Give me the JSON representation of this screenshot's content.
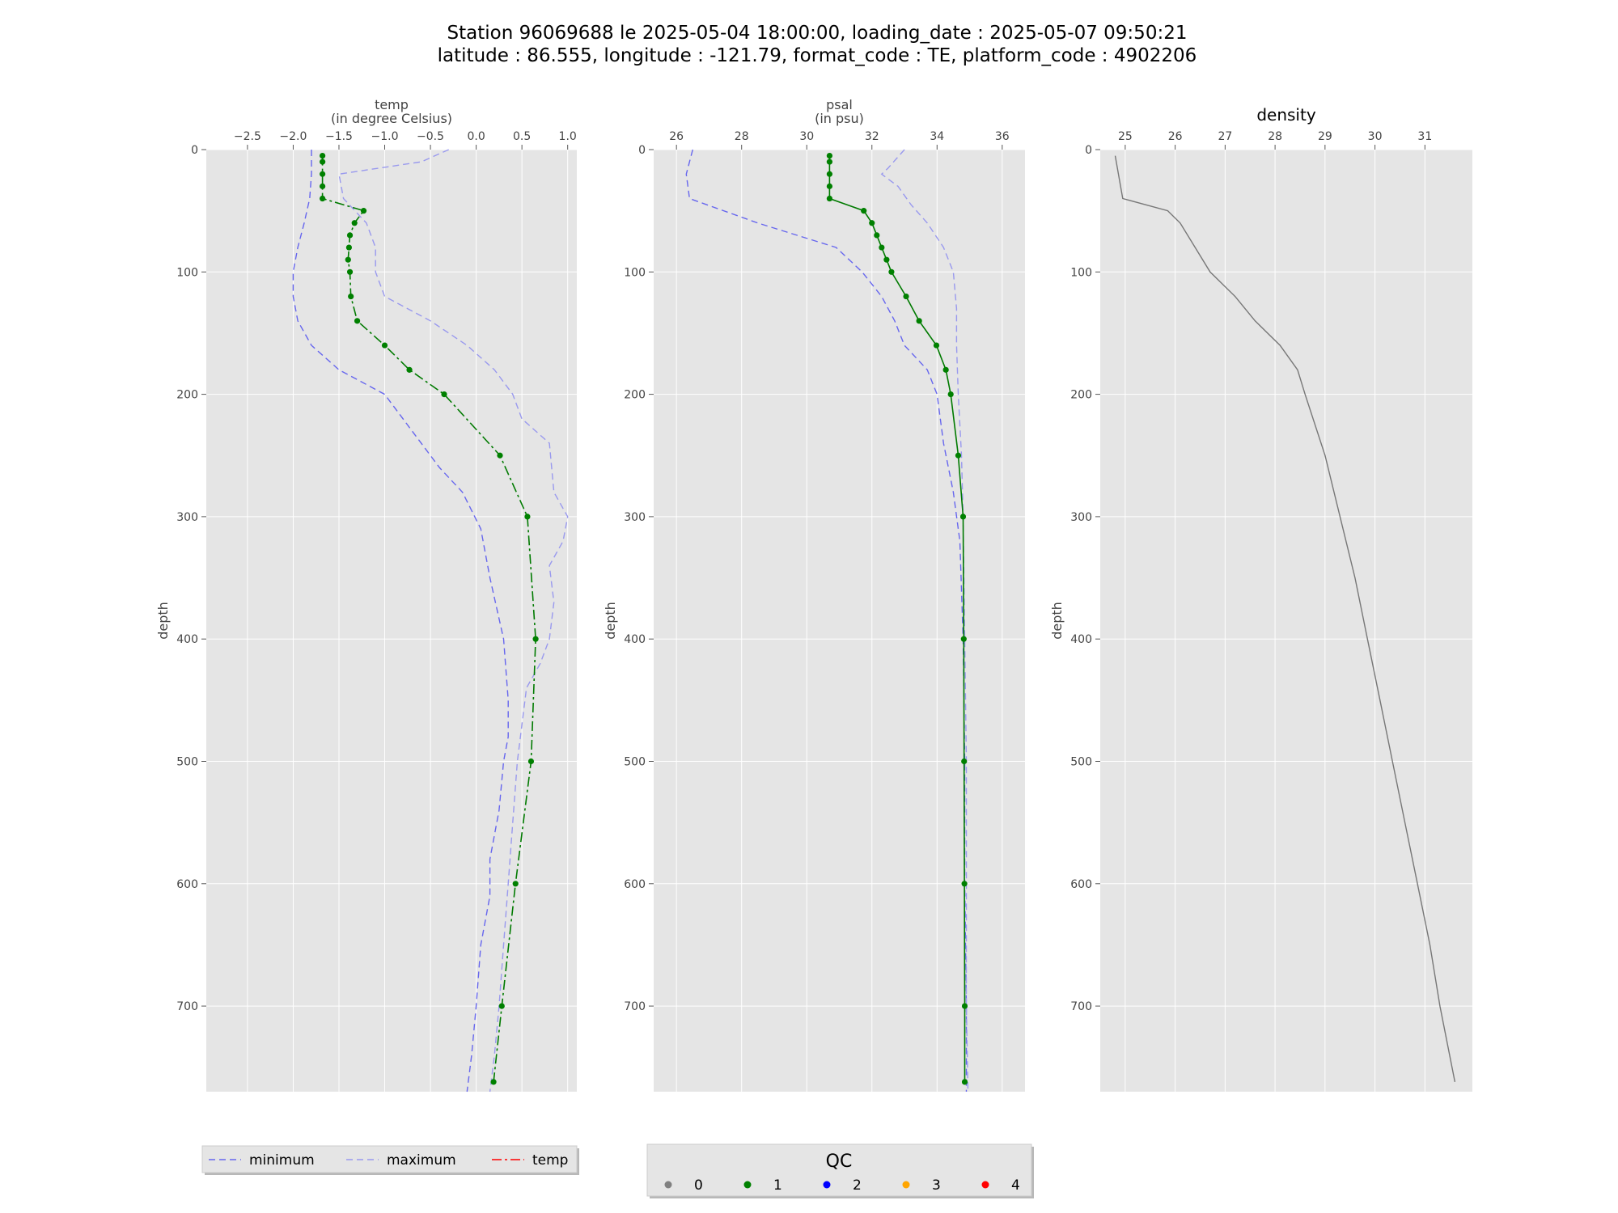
{
  "title_line1": "Station 96069688 le 2025-05-04 18:00:00, loading_date : 2025-05-07 09:50:21",
  "title_line2": "latitude : 86.555, longitude : -121.79, format_code : TE, platform_code : 4902206",
  "colors": {
    "minimum": "#6666ee",
    "maximum": "#9999ee",
    "data": "#007a00",
    "density": "#777777",
    "panel_bg": "#e5e5e5",
    "grid": "#ffffff",
    "qc_0": "#808080",
    "qc_1": "#008000",
    "qc_2": "#0000ff",
    "qc_3": "#ffa500",
    "qc_4": "#ff0000",
    "temp_legend": "#ff0000"
  },
  "chart_data": [
    {
      "id": "temp",
      "type": "line",
      "xlabel_line1": "temp",
      "xlabel_line2": "(in degree Celsius)",
      "title": "",
      "ylabel": "depth",
      "xlim": [
        -2.95,
        1.1
      ],
      "ylim": [
        770,
        0
      ],
      "xticks": [
        -2.5,
        -2.0,
        -1.5,
        -1.0,
        -0.5,
        0.0,
        0.5,
        1.0
      ],
      "xtick_labels": [
        "−2.5",
        "−2.0",
        "−1.5",
        "−1.0",
        "−0.5",
        "0.0",
        "0.5",
        "1.0"
      ],
      "yticks": [
        0,
        100,
        200,
        300,
        400,
        500,
        600,
        700
      ],
      "ytick_labels": [
        "0",
        "100",
        "200",
        "300",
        "400",
        "500",
        "600",
        "700"
      ],
      "series": [
        {
          "role": "minimum",
          "style": "dashed",
          "points": [
            [
              -1.8,
              0
            ],
            [
              -1.8,
              20
            ],
            [
              -1.82,
              40
            ],
            [
              -1.88,
              60
            ],
            [
              -1.95,
              80
            ],
            [
              -2.0,
              100
            ],
            [
              -2.0,
              120
            ],
            [
              -1.95,
              140
            ],
            [
              -1.8,
              160
            ],
            [
              -1.5,
              180
            ],
            [
              -1.0,
              200
            ],
            [
              -0.7,
              230
            ],
            [
              -0.4,
              260
            ],
            [
              -0.15,
              280
            ],
            [
              0.05,
              310
            ],
            [
              0.15,
              350
            ],
            [
              0.3,
              400
            ],
            [
              0.35,
              450
            ],
            [
              0.35,
              480
            ],
            [
              0.3,
              500
            ],
            [
              0.25,
              540
            ],
            [
              0.15,
              580
            ],
            [
              0.15,
              610
            ],
            [
              0.05,
              650
            ],
            [
              0.0,
              700
            ],
            [
              -0.05,
              740
            ],
            [
              -0.1,
              770
            ]
          ]
        },
        {
          "role": "maximum",
          "style": "dashed",
          "points": [
            [
              -0.3,
              0
            ],
            [
              -0.6,
              10
            ],
            [
              -1.5,
              20
            ],
            [
              -1.45,
              40
            ],
            [
              -1.2,
              60
            ],
            [
              -1.1,
              80
            ],
            [
              -1.1,
              100
            ],
            [
              -1.0,
              120
            ],
            [
              -0.5,
              140
            ],
            [
              -0.1,
              160
            ],
            [
              0.2,
              180
            ],
            [
              0.4,
              200
            ],
            [
              0.5,
              220
            ],
            [
              0.8,
              240
            ],
            [
              0.85,
              280
            ],
            [
              1.0,
              300
            ],
            [
              0.95,
              320
            ],
            [
              0.8,
              340
            ],
            [
              0.85,
              370
            ],
            [
              0.8,
              400
            ],
            [
              0.7,
              420
            ],
            [
              0.55,
              440
            ],
            [
              0.45,
              500
            ],
            [
              0.4,
              550
            ],
            [
              0.35,
              600
            ],
            [
              0.3,
              650
            ],
            [
              0.25,
              700
            ],
            [
              0.2,
              740
            ],
            [
              0.15,
              770
            ]
          ]
        },
        {
          "role": "temp",
          "style": "dashdot",
          "qc": 1,
          "points": [
            [
              -1.68,
              5
            ],
            [
              -1.68,
              10
            ],
            [
              -1.68,
              20
            ],
            [
              -1.68,
              30
            ],
            [
              -1.68,
              40
            ],
            [
              -1.23,
              50
            ],
            [
              -1.33,
              60
            ],
            [
              -1.38,
              70
            ],
            [
              -1.39,
              80
            ],
            [
              -1.4,
              90
            ],
            [
              -1.38,
              100
            ],
            [
              -1.37,
              120
            ],
            [
              -1.3,
              140
            ],
            [
              -1.0,
              160
            ],
            [
              -0.73,
              180
            ],
            [
              -0.35,
              200
            ],
            [
              0.26,
              250
            ],
            [
              0.56,
              300
            ],
            [
              0.65,
              400
            ],
            [
              0.6,
              500
            ],
            [
              0.43,
              600
            ],
            [
              0.28,
              700
            ],
            [
              0.19,
              762
            ]
          ]
        }
      ]
    },
    {
      "id": "psal",
      "type": "line",
      "xlabel_line1": "psal",
      "xlabel_line2": "(in psu)",
      "title": "",
      "ylabel": "depth",
      "xlim": [
        25.3,
        36.7
      ],
      "ylim": [
        770,
        0
      ],
      "xticks": [
        26,
        28,
        30,
        32,
        34,
        36
      ],
      "xtick_labels": [
        "26",
        "28",
        "30",
        "32",
        "34",
        "36"
      ],
      "yticks": [
        0,
        100,
        200,
        300,
        400,
        500,
        600,
        700
      ],
      "ytick_labels": [
        "0",
        "100",
        "200",
        "300",
        "400",
        "500",
        "600",
        "700"
      ],
      "series": [
        {
          "role": "minimum",
          "style": "dashed",
          "points": [
            [
              26.5,
              0
            ],
            [
              26.3,
              20
            ],
            [
              26.4,
              40
            ],
            [
              28.5,
              60
            ],
            [
              30.9,
              80
            ],
            [
              31.7,
              100
            ],
            [
              32.3,
              120
            ],
            [
              32.7,
              140
            ],
            [
              33.0,
              160
            ],
            [
              33.7,
              180
            ],
            [
              34.0,
              200
            ],
            [
              34.2,
              240
            ],
            [
              34.5,
              280
            ],
            [
              34.7,
              320
            ],
            [
              34.8,
              400
            ],
            [
              34.85,
              500
            ],
            [
              34.85,
              600
            ],
            [
              34.9,
              700
            ],
            [
              34.9,
              770
            ]
          ]
        },
        {
          "role": "maximum",
          "style": "dashed",
          "points": [
            [
              33.0,
              0
            ],
            [
              32.5,
              15
            ],
            [
              32.3,
              20
            ],
            [
              32.8,
              30
            ],
            [
              33.2,
              45
            ],
            [
              33.7,
              60
            ],
            [
              34.2,
              80
            ],
            [
              34.5,
              100
            ],
            [
              34.6,
              130
            ],
            [
              34.6,
              160
            ],
            [
              34.65,
              200
            ],
            [
              34.75,
              250
            ],
            [
              34.8,
              300
            ],
            [
              34.85,
              400
            ],
            [
              34.9,
              500
            ],
            [
              34.9,
              600
            ],
            [
              34.9,
              700
            ],
            [
              34.95,
              770
            ]
          ]
        },
        {
          "role": "psal",
          "style": "solid",
          "qc": 1,
          "points": [
            [
              30.7,
              5
            ],
            [
              30.7,
              10
            ],
            [
              30.7,
              20
            ],
            [
              30.7,
              30
            ],
            [
              30.7,
              40
            ],
            [
              31.75,
              50
            ],
            [
              32.0,
              60
            ],
            [
              32.15,
              70
            ],
            [
              32.3,
              80
            ],
            [
              32.45,
              90
            ],
            [
              32.6,
              100
            ],
            [
              33.05,
              120
            ],
            [
              33.45,
              140
            ],
            [
              33.98,
              160
            ],
            [
              34.27,
              180
            ],
            [
              34.42,
              200
            ],
            [
              34.65,
              250
            ],
            [
              34.8,
              300
            ],
            [
              34.82,
              400
            ],
            [
              34.83,
              500
            ],
            [
              34.84,
              600
            ],
            [
              34.85,
              700
            ],
            [
              34.85,
              762
            ]
          ]
        }
      ]
    },
    {
      "id": "density",
      "type": "line",
      "title": "density",
      "ylabel": "depth",
      "xlim": [
        24.5,
        31.95
      ],
      "ylim": [
        770,
        0
      ],
      "xticks": [
        25,
        26,
        27,
        28,
        29,
        30,
        31
      ],
      "xtick_labels": [
        "25",
        "26",
        "27",
        "28",
        "29",
        "30",
        "31"
      ],
      "yticks": [
        0,
        100,
        200,
        300,
        400,
        500,
        600,
        700
      ],
      "ytick_labels": [
        "0",
        "100",
        "200",
        "300",
        "400",
        "500",
        "600",
        "700"
      ],
      "series": [
        {
          "role": "density",
          "style": "solid",
          "points": [
            [
              24.8,
              5
            ],
            [
              24.95,
              40
            ],
            [
              25.85,
              50
            ],
            [
              26.1,
              60
            ],
            [
              26.4,
              80
            ],
            [
              26.7,
              100
            ],
            [
              27.2,
              120
            ],
            [
              27.6,
              140
            ],
            [
              28.1,
              160
            ],
            [
              28.45,
              180
            ],
            [
              28.6,
              200
            ],
            [
              29.0,
              250
            ],
            [
              29.3,
              300
            ],
            [
              29.6,
              350
            ],
            [
              29.85,
              400
            ],
            [
              30.1,
              450
            ],
            [
              30.35,
              500
            ],
            [
              30.6,
              550
            ],
            [
              30.85,
              600
            ],
            [
              31.1,
              650
            ],
            [
              31.3,
              700
            ],
            [
              31.6,
              762
            ]
          ]
        }
      ]
    }
  ],
  "legend_main": {
    "items": [
      {
        "label": "minimum",
        "role": "minimum",
        "style": "dashed"
      },
      {
        "label": "maximum",
        "role": "maximum",
        "style": "dashed"
      },
      {
        "label": "temp",
        "role": "temp_legend",
        "style": "dashdot"
      }
    ]
  },
  "legend_qc": {
    "title": "QC",
    "items": [
      {
        "label": "0",
        "color_key": "qc_0"
      },
      {
        "label": "1",
        "color_key": "qc_1"
      },
      {
        "label": "2",
        "color_key": "qc_2"
      },
      {
        "label": "3",
        "color_key": "qc_3"
      },
      {
        "label": "4",
        "color_key": "qc_4"
      }
    ]
  }
}
